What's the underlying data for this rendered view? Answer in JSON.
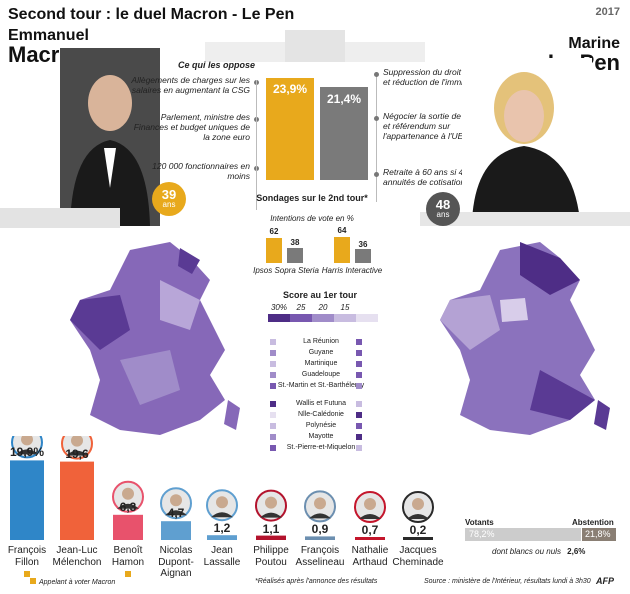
{
  "title": "Second tour : le duel Macron - Le Pen",
  "logo": "2017",
  "macron": {
    "first": "Emmanuel",
    "last": "Macron",
    "age": "39",
    "age_unit": "ans",
    "score": "23,9%",
    "arguments": [
      "Allègements de charges sur les salaires en augmentant la CSG",
      "Parlement, ministre des Finances et budget uniques de la zone euro",
      "120 000 fonctionnaires en moins"
    ]
  },
  "lepen": {
    "first": "Marine",
    "last": "Le Pen",
    "age": "48",
    "age_unit": "ans",
    "score": "21,4%",
    "arguments": [
      "Suppression du droit du sol et réduction de l'immigration",
      "Négocier la sortie de l'euro et référendum sur l'appartenance à l'UE",
      "Retraite à 60 ans si 40 annuités de cotisation"
    ]
  },
  "oppose_title": "Ce qui les oppose",
  "polls": {
    "title": "Sondages sur le 2nd tour*",
    "subtitle": "Intentions de vote en %",
    "items": [
      {
        "name": "Ipsos Sopra Steria",
        "macron": 62,
        "lepen": 38
      },
      {
        "name": "Harris Interactive",
        "macron": 64,
        "lepen": 36
      }
    ]
  },
  "legend": {
    "title": "Score au 1er tour",
    "steps": [
      "30%",
      "25",
      "20",
      "15"
    ]
  },
  "territories": [
    "La Réunion",
    "Guyane",
    "Martinique",
    "Guadeloupe",
    "St.-Martin et St.-Barthélemy",
    "Wallis et Futuna",
    "Nlle-Calédonie",
    "Polynésie",
    "Mayotte",
    "St.-Pierre-et-Miquelon"
  ],
  "turnout": {
    "votants_label": "Votants",
    "votants": "78,2%",
    "abst_label": "Abstention",
    "abst": "21,8%",
    "blank_label": "dont blancs ou nuls",
    "blank": "2,6%"
  },
  "notes": {
    "left": "Appelant à voter Macron",
    "poll": "*Réalisés après l'annonce des résultats",
    "source": "Source : ministère de l'Intérieur, résultats lundi à 3h30",
    "agency": "AFP"
  },
  "chart_data": {
    "type": "bar",
    "title": "",
    "categories": [
      "François Fillon",
      "Jean-Luc Mélenchon",
      "Benoît Hamon",
      "Nicolas Dupont-Aignan",
      "Jean Lassalle",
      "Philippe Poutou",
      "François Asselineau",
      "Nathalie Arthaud",
      "Jacques Cheminade"
    ],
    "values": [
      19.9,
      19.6,
      6.3,
      4.7,
      1.2,
      1.1,
      0.9,
      0.7,
      0.2
    ],
    "value_labels": [
      "19,9%",
      "19,6",
      "6,3",
      "4,7",
      "1,2",
      "1,1",
      "0,9",
      "0,7",
      "0,2"
    ],
    "colors": [
      "#2f86c8",
      "#f0623a",
      "#e8526c",
      "#5f9fd0",
      "#5f9fd0",
      "#b3132d",
      "#6c8fb0",
      "#c4162c",
      "#2a2a2a"
    ],
    "supports_macron": [
      true,
      false,
      true,
      false,
      false,
      false,
      false,
      false,
      false
    ]
  }
}
